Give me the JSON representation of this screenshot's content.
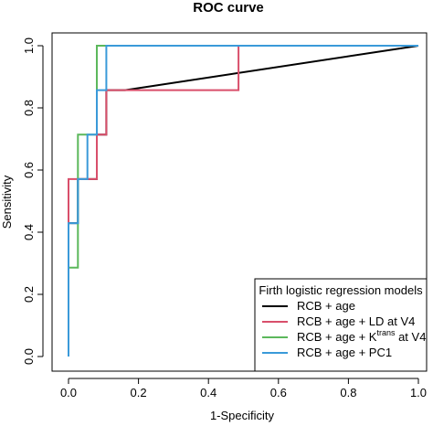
{
  "chart_data": {
    "type": "line",
    "title": "ROC curve",
    "xlabel": "1-Specificity",
    "ylabel": "Sensitivity",
    "xlim": [
      0,
      1
    ],
    "ylim": [
      0,
      1
    ],
    "xticks": [
      "0.0",
      "0.2",
      "0.4",
      "0.6",
      "0.8",
      "1.0"
    ],
    "yticks": [
      "0.0",
      "0.2",
      "0.4",
      "0.6",
      "0.8",
      "1.0"
    ],
    "grid": false,
    "legend": {
      "title": "Firth logistic regression models",
      "placement": "bottom-right"
    },
    "series": [
      {
        "name": "RCB + age",
        "color": "#000000",
        "x": [
          0,
          0,
          0.027,
          0.027,
          0.054,
          0.054,
          0.081,
          0.081,
          0.108,
          0.108,
          0.162,
          1.0
        ],
        "y": [
          0,
          0.429,
          0.429,
          0.571,
          0.571,
          0.571,
          0.571,
          0.714,
          0.714,
          0.857,
          0.857,
          1.0
        ]
      },
      {
        "name": "RCB + age + LD at V4",
        "color": "#d94f6b",
        "x": [
          0,
          0,
          0.027,
          0.027,
          0.081,
          0.081,
          0.108,
          0.108,
          0.162,
          0.162,
          0.486,
          0.486,
          1.0
        ],
        "y": [
          0,
          0.571,
          0.571,
          0.571,
          0.571,
          0.714,
          0.714,
          0.857,
          0.857,
          0.857,
          0.857,
          1.0,
          1.0
        ]
      },
      {
        "name_parts": [
          "RCB + age + K",
          "trans",
          " at V4"
        ],
        "color": "#5cb85c",
        "x": [
          0,
          0,
          0.027,
          0.027,
          0.054,
          0.054,
          0.081,
          0.081,
          0.108,
          1.0
        ],
        "y": [
          0,
          0.286,
          0.286,
          0.714,
          0.714,
          0.714,
          0.714,
          1.0,
          1.0,
          1.0
        ]
      },
      {
        "name": "RCB + age + PC1",
        "color": "#3a9ad9",
        "x": [
          0,
          0,
          0.027,
          0.027,
          0.054,
          0.054,
          0.081,
          0.081,
          0.108,
          0.108,
          1.0
        ],
        "y": [
          0,
          0.429,
          0.429,
          0.571,
          0.571,
          0.714,
          0.714,
          0.857,
          0.857,
          1.0,
          1.0
        ]
      }
    ]
  }
}
